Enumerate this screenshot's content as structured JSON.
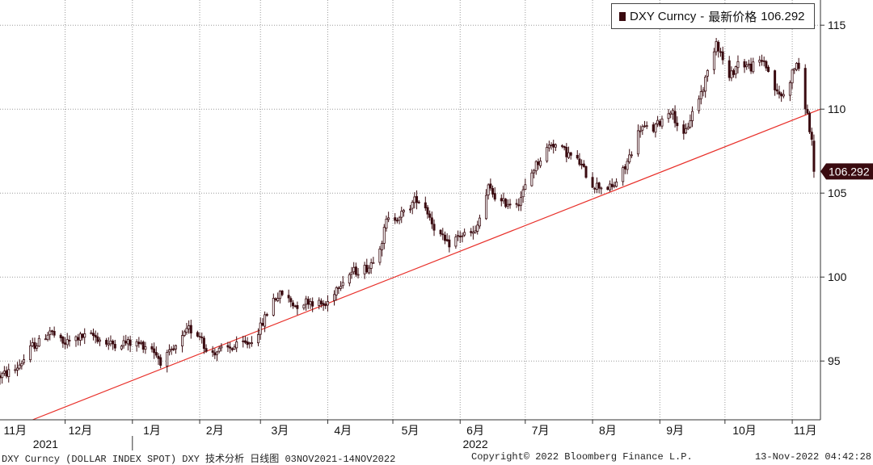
{
  "chart_data": {
    "type": "candlestick",
    "ticker": "DXY Curncy",
    "legend_metric": "最新价格",
    "last_price": 106.292,
    "last_price_label": "106.292",
    "ylim": [
      91.5,
      116.5
    ],
    "y_ticks": [
      95,
      100,
      105,
      110,
      115
    ],
    "x_start": "2021-11-01",
    "x_end": "2022-11-14",
    "months": [
      {
        "label": "11月",
        "date": "2021-11-08"
      },
      {
        "label": "12月",
        "date": "2021-12-08"
      },
      {
        "label": "1月",
        "date": "2022-01-10"
      },
      {
        "label": "2月",
        "date": "2022-02-08"
      },
      {
        "label": "3月",
        "date": "2022-03-10"
      },
      {
        "label": "4月",
        "date": "2022-04-08"
      },
      {
        "label": "5月",
        "date": "2022-05-09"
      },
      {
        "label": "6月",
        "date": "2022-06-08"
      },
      {
        "label": "7月",
        "date": "2022-07-08"
      },
      {
        "label": "8月",
        "date": "2022-08-08"
      },
      {
        "label": "9月",
        "date": "2022-09-08"
      },
      {
        "label": "10月",
        "date": "2022-10-10"
      },
      {
        "label": "11月",
        "date": "2022-11-07"
      }
    ],
    "years": [
      {
        "label": "2021",
        "date": "2021-11-22"
      },
      {
        "label": "2022",
        "date": "2022-06-08"
      }
    ],
    "trendline": {
      "color": "#e8302a",
      "points": [
        [
          "2021-11-16",
          91.5
        ],
        [
          "2022-11-14",
          110.0
        ]
      ]
    },
    "price_path": [
      [
        "2021-11-01",
        94.1
      ],
      [
        "2021-11-08",
        94.5
      ],
      [
        "2021-11-12",
        95.1
      ],
      [
        "2021-11-16",
        95.9
      ],
      [
        "2021-11-19",
        96.1
      ],
      [
        "2021-11-24",
        96.8
      ],
      [
        "2021-11-30",
        96.0
      ],
      [
        "2021-12-07",
        96.4
      ],
      [
        "2021-12-14",
        96.5
      ],
      [
        "2021-12-21",
        96.0
      ],
      [
        "2021-12-28",
        96.1
      ],
      [
        "2022-01-05",
        96.0
      ],
      [
        "2022-01-10",
        95.8
      ],
      [
        "2022-01-14",
        95.0
      ],
      [
        "2022-01-20",
        95.6
      ],
      [
        "2022-01-27",
        96.9
      ],
      [
        "2022-02-02",
        96.5
      ],
      [
        "2022-02-04",
        95.5
      ],
      [
        "2022-02-10",
        95.6
      ],
      [
        "2022-02-16",
        95.8
      ],
      [
        "2022-02-24",
        96.1
      ],
      [
        "2022-03-01",
        97.0
      ],
      [
        "2022-03-07",
        98.7
      ],
      [
        "2022-03-11",
        99.0
      ],
      [
        "2022-03-17",
        98.3
      ],
      [
        "2022-03-23",
        98.6
      ],
      [
        "2022-03-31",
        98.3
      ],
      [
        "2022-04-06",
        99.6
      ],
      [
        "2022-04-12",
        100.3
      ],
      [
        "2022-04-20",
        100.6
      ],
      [
        "2022-04-26",
        102.2
      ],
      [
        "2022-04-28",
        103.3
      ],
      [
        "2022-05-06",
        103.8
      ],
      [
        "2022-05-12",
        104.7
      ],
      [
        "2022-05-16",
        104.2
      ],
      [
        "2022-05-20",
        103.0
      ],
      [
        "2022-05-26",
        101.9
      ],
      [
        "2022-06-01",
        102.5
      ],
      [
        "2022-06-08",
        102.6
      ],
      [
        "2022-06-14",
        105.3
      ],
      [
        "2022-06-20",
        104.4
      ],
      [
        "2022-06-28",
        104.5
      ],
      [
        "2022-07-05",
        106.5
      ],
      [
        "2022-07-13",
        108.0
      ],
      [
        "2022-07-18",
        107.6
      ],
      [
        "2022-07-26",
        106.8
      ],
      [
        "2022-08-01",
        105.5
      ],
      [
        "2022-08-10",
        105.3
      ],
      [
        "2022-08-16",
        106.5
      ],
      [
        "2022-08-23",
        108.9
      ],
      [
        "2022-08-29",
        108.8
      ],
      [
        "2022-09-06",
        110.0
      ],
      [
        "2022-09-12",
        108.3
      ],
      [
        "2022-09-16",
        109.8
      ],
      [
        "2022-09-21",
        111.3
      ],
      [
        "2022-09-27",
        114.1
      ],
      [
        "2022-10-03",
        111.8
      ],
      [
        "2022-10-07",
        112.8
      ],
      [
        "2022-10-13",
        112.5
      ],
      [
        "2022-10-19",
        112.9
      ],
      [
        "2022-10-25",
        110.9
      ],
      [
        "2022-10-28",
        110.8
      ],
      [
        "2022-11-03",
        112.8
      ],
      [
        "2022-11-08",
        109.6
      ],
      [
        "2022-11-10",
        108.0
      ],
      [
        "2022-11-11",
        106.3
      ]
    ]
  },
  "footer": {
    "left": "DXY Curncy (DOLLAR INDEX SPOT) DXY 技术分析  日线图 03NOV2021-14NOV2022",
    "center": "Copyright© 2022 Bloomberg Finance L.P.",
    "right": "13-Nov-2022 04:42:28"
  },
  "colors": {
    "candle": "#3a0b10",
    "trendline": "#e8302a",
    "grid": "#9a9a9a",
    "last_price_tag": "#3a0b10"
  }
}
